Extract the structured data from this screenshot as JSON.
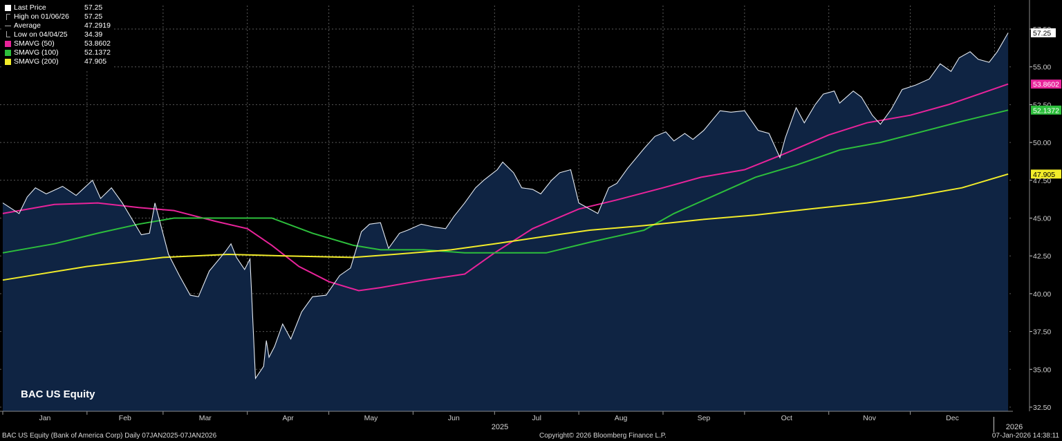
{
  "chart_data": {
    "type": "area",
    "ticker_label": "BAC US Equity",
    "year_label": "2025",
    "next_year_label": "2026",
    "months": [
      "Jan",
      "Feb",
      "Mar",
      "Apr",
      "May",
      "Jun",
      "Jul",
      "Aug",
      "Sep",
      "Oct",
      "Nov",
      "Dec"
    ],
    "y_ticks": [
      "32.50",
      "35.00",
      "37.50",
      "40.00",
      "42.50",
      "45.00",
      "47.50",
      "50.00",
      "52.50",
      "55.00",
      "57.50"
    ],
    "ylim": [
      32.5,
      57.5
    ],
    "grid": true,
    "legend_position": "top-left",
    "legend": [
      {
        "name": "Last Price",
        "value": "57.25",
        "symbol": "square",
        "color": "#ffffff"
      },
      {
        "name": "High on 01/06/26",
        "value": "57.25",
        "symbol": "high",
        "color": "#aaaaaa"
      },
      {
        "name": "Average",
        "value": "47.2919",
        "symbol": "avg",
        "color": "#aaaaaa"
      },
      {
        "name": "Low on 04/04/25",
        "value": "34.39",
        "symbol": "low",
        "color": "#aaaaaa"
      },
      {
        "name": "SMAVG (50)",
        "value": "53.8602",
        "symbol": "square",
        "color": "#e8239a"
      },
      {
        "name": "SMAVG (100)",
        "value": "52.1372",
        "symbol": "square",
        "color": "#2dbf3c"
      },
      {
        "name": "SMAVG (200)",
        "value": "47.905",
        "symbol": "square",
        "color": "#f2ec2a"
      }
    ],
    "price_points": [
      [
        "2025-01-01",
        46.0
      ],
      [
        "2025-01-07",
        45.3
      ],
      [
        "2025-01-10",
        46.4
      ],
      [
        "2025-01-13",
        47.0
      ],
      [
        "2025-01-17",
        46.6
      ],
      [
        "2025-01-23",
        47.1
      ],
      [
        "2025-01-28",
        46.5
      ],
      [
        "2025-02-03",
        47.5
      ],
      [
        "2025-02-06",
        46.3
      ],
      [
        "2025-02-10",
        47.0
      ],
      [
        "2025-02-14",
        46.0
      ],
      [
        "2025-02-18",
        44.8
      ],
      [
        "2025-02-21",
        43.9
      ],
      [
        "2025-02-24",
        44.0
      ],
      [
        "2025-02-26",
        46.0
      ],
      [
        "2025-03-03",
        42.6
      ],
      [
        "2025-03-07",
        41.2
      ],
      [
        "2025-03-11",
        39.9
      ],
      [
        "2025-03-14",
        39.8
      ],
      [
        "2025-03-18",
        41.5
      ],
      [
        "2025-03-24",
        42.8
      ],
      [
        "2025-03-26",
        43.3
      ],
      [
        "2025-03-28",
        42.4
      ],
      [
        "2025-03-31",
        41.6
      ],
      [
        "2025-04-02",
        42.3
      ],
      [
        "2025-04-04",
        34.4
      ],
      [
        "2025-04-07",
        35.2
      ],
      [
        "2025-04-08",
        36.9
      ],
      [
        "2025-04-09",
        35.8
      ],
      [
        "2025-04-11",
        36.5
      ],
      [
        "2025-04-14",
        38.0
      ],
      [
        "2025-04-17",
        37.0
      ],
      [
        "2025-04-21",
        38.8
      ],
      [
        "2025-04-25",
        39.8
      ],
      [
        "2025-04-30",
        39.9
      ],
      [
        "2025-05-05",
        41.2
      ],
      [
        "2025-05-09",
        41.7
      ],
      [
        "2025-05-13",
        44.1
      ],
      [
        "2025-05-16",
        44.6
      ],
      [
        "2025-05-20",
        44.7
      ],
      [
        "2025-05-23",
        43.0
      ],
      [
        "2025-05-27",
        44.0
      ],
      [
        "2025-05-30",
        44.2
      ],
      [
        "2025-06-04",
        44.6
      ],
      [
        "2025-06-09",
        44.4
      ],
      [
        "2025-06-13",
        44.3
      ],
      [
        "2025-06-16",
        45.1
      ],
      [
        "2025-06-20",
        46.0
      ],
      [
        "2025-06-24",
        47.0
      ],
      [
        "2025-06-27",
        47.5
      ],
      [
        "2025-07-02",
        48.2
      ],
      [
        "2025-07-04",
        48.7
      ],
      [
        "2025-07-08",
        48.0
      ],
      [
        "2025-07-11",
        47.0
      ],
      [
        "2025-07-15",
        46.9
      ],
      [
        "2025-07-18",
        46.6
      ],
      [
        "2025-07-22",
        47.5
      ],
      [
        "2025-07-25",
        48.0
      ],
      [
        "2025-07-29",
        48.2
      ],
      [
        "2025-08-01",
        46.0
      ],
      [
        "2025-08-05",
        45.6
      ],
      [
        "2025-08-08",
        45.3
      ],
      [
        "2025-08-12",
        47.0
      ],
      [
        "2025-08-15",
        47.3
      ],
      [
        "2025-08-19",
        48.3
      ],
      [
        "2025-08-25",
        49.6
      ],
      [
        "2025-08-29",
        50.4
      ],
      [
        "2025-09-02",
        50.7
      ],
      [
        "2025-09-05",
        50.1
      ],
      [
        "2025-09-09",
        50.6
      ],
      [
        "2025-09-12",
        50.2
      ],
      [
        "2025-09-16",
        50.8
      ],
      [
        "2025-09-22",
        52.1
      ],
      [
        "2025-09-26",
        52.0
      ],
      [
        "2025-10-01",
        52.1
      ],
      [
        "2025-10-06",
        50.8
      ],
      [
        "2025-10-10",
        50.6
      ],
      [
        "2025-10-14",
        49.0
      ],
      [
        "2025-10-16",
        50.3
      ],
      [
        "2025-10-20",
        52.3
      ],
      [
        "2025-10-23",
        51.3
      ],
      [
        "2025-10-27",
        52.5
      ],
      [
        "2025-10-30",
        53.2
      ],
      [
        "2025-11-03",
        53.4
      ],
      [
        "2025-11-05",
        52.6
      ],
      [
        "2025-11-10",
        53.4
      ],
      [
        "2025-11-13",
        53.0
      ],
      [
        "2025-11-17",
        51.8
      ],
      [
        "2025-11-20",
        51.2
      ],
      [
        "2025-11-24",
        52.2
      ],
      [
        "2025-11-28",
        53.5
      ],
      [
        "2025-12-03",
        53.8
      ],
      [
        "2025-12-08",
        54.2
      ],
      [
        "2025-12-12",
        55.2
      ],
      [
        "2025-12-16",
        54.7
      ],
      [
        "2025-12-19",
        55.6
      ],
      [
        "2025-12-23",
        56.0
      ],
      [
        "2025-12-26",
        55.5
      ],
      [
        "2025-12-30",
        55.3
      ],
      [
        "2026-01-02",
        56.0
      ],
      [
        "2026-01-06",
        57.25
      ]
    ],
    "series": [
      {
        "name": "SMAVG (50)",
        "color": "#e8239a",
        "last": "53.8602",
        "points": [
          [
            "2025-01-01",
            45.3
          ],
          [
            "2025-01-20",
            45.9
          ],
          [
            "2025-02-05",
            46.0
          ],
          [
            "2025-02-20",
            45.7
          ],
          [
            "2025-03-05",
            45.5
          ],
          [
            "2025-03-20",
            44.8
          ],
          [
            "2025-04-01",
            44.3
          ],
          [
            "2025-04-10",
            43.2
          ],
          [
            "2025-04-20",
            41.8
          ],
          [
            "2025-05-01",
            40.8
          ],
          [
            "2025-05-12",
            40.2
          ],
          [
            "2025-05-20",
            40.4
          ],
          [
            "2025-06-05",
            40.9
          ],
          [
            "2025-06-20",
            41.3
          ],
          [
            "2025-07-01",
            42.7
          ],
          [
            "2025-07-15",
            44.3
          ],
          [
            "2025-08-01",
            45.6
          ],
          [
            "2025-08-15",
            46.2
          ],
          [
            "2025-09-01",
            47.0
          ],
          [
            "2025-09-15",
            47.7
          ],
          [
            "2025-10-01",
            48.2
          ],
          [
            "2025-10-15",
            49.2
          ],
          [
            "2025-11-01",
            50.5
          ],
          [
            "2025-11-15",
            51.3
          ],
          [
            "2025-12-01",
            51.8
          ],
          [
            "2025-12-15",
            52.5
          ],
          [
            "2026-01-06",
            53.86
          ]
        ]
      },
      {
        "name": "SMAVG (100)",
        "color": "#2dbf3c",
        "last": "52.1372",
        "points": [
          [
            "2025-01-01",
            42.7
          ],
          [
            "2025-01-20",
            43.3
          ],
          [
            "2025-02-05",
            44.0
          ],
          [
            "2025-02-20",
            44.6
          ],
          [
            "2025-03-05",
            45.0
          ],
          [
            "2025-03-20",
            45.0
          ],
          [
            "2025-04-10",
            45.0
          ],
          [
            "2025-04-25",
            44.0
          ],
          [
            "2025-05-10",
            43.2
          ],
          [
            "2025-05-20",
            42.9
          ],
          [
            "2025-06-05",
            42.9
          ],
          [
            "2025-06-20",
            42.7
          ],
          [
            "2025-07-05",
            42.7
          ],
          [
            "2025-07-20",
            42.7
          ],
          [
            "2025-08-05",
            43.4
          ],
          [
            "2025-08-25",
            44.2
          ],
          [
            "2025-09-05",
            45.3
          ],
          [
            "2025-09-20",
            46.5
          ],
          [
            "2025-10-05",
            47.7
          ],
          [
            "2025-10-20",
            48.5
          ],
          [
            "2025-11-05",
            49.5
          ],
          [
            "2025-11-20",
            50.0
          ],
          [
            "2025-12-05",
            50.7
          ],
          [
            "2025-12-20",
            51.4
          ],
          [
            "2026-01-06",
            52.14
          ]
        ]
      },
      {
        "name": "SMAVG (200)",
        "color": "#f2ec2a",
        "last": "47.905",
        "points": [
          [
            "2025-01-01",
            40.9
          ],
          [
            "2025-02-01",
            41.8
          ],
          [
            "2025-03-01",
            42.4
          ],
          [
            "2025-03-25",
            42.6
          ],
          [
            "2025-04-15",
            42.5
          ],
          [
            "2025-05-10",
            42.4
          ],
          [
            "2025-05-25",
            42.6
          ],
          [
            "2025-06-15",
            42.9
          ],
          [
            "2025-07-01",
            43.3
          ],
          [
            "2025-07-20",
            43.8
          ],
          [
            "2025-08-05",
            44.2
          ],
          [
            "2025-08-25",
            44.5
          ],
          [
            "2025-09-15",
            44.9
          ],
          [
            "2025-10-05",
            45.2
          ],
          [
            "2025-10-25",
            45.6
          ],
          [
            "2025-11-15",
            46.0
          ],
          [
            "2025-12-01",
            46.4
          ],
          [
            "2025-12-20",
            47.0
          ],
          [
            "2026-01-06",
            47.91
          ]
        ]
      }
    ]
  },
  "last_price_tag": "57.25",
  "footer": {
    "left": "BAC US Equity (Bank of America Corp) Daily 07JAN2025-07JAN2026",
    "center": "Copyright© 2026 Bloomberg Finance L.P.",
    "right": "07-Jan-2026 14:38:11"
  }
}
